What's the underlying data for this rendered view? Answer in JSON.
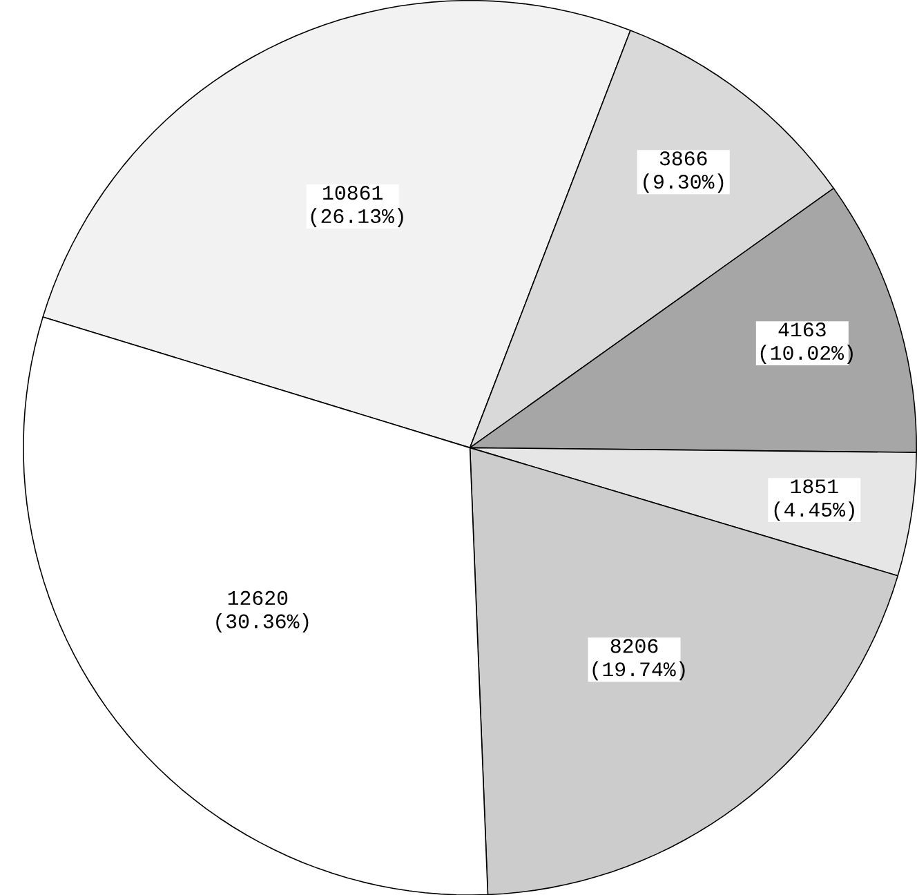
{
  "chart_data": {
    "type": "pie",
    "categories": [
      null,
      null,
      null,
      null,
      null,
      null
    ],
    "values": [
      10861,
      3866,
      4163,
      1851,
      8206,
      12620
    ],
    "colors": [
      "#f2f2f2",
      "#d9d9d9",
      "#a6a6a6",
      "#e6e6e6",
      "#cccccc",
      "#ffffff"
    ],
    "value_labels": [
      "10861 (26.13%)",
      "3866 (9.30%)",
      "4163 (10.02%)",
      "1851 (4.45%)",
      "8206 (19.74%)",
      "12620 (30.36%)"
    ]
  }
}
